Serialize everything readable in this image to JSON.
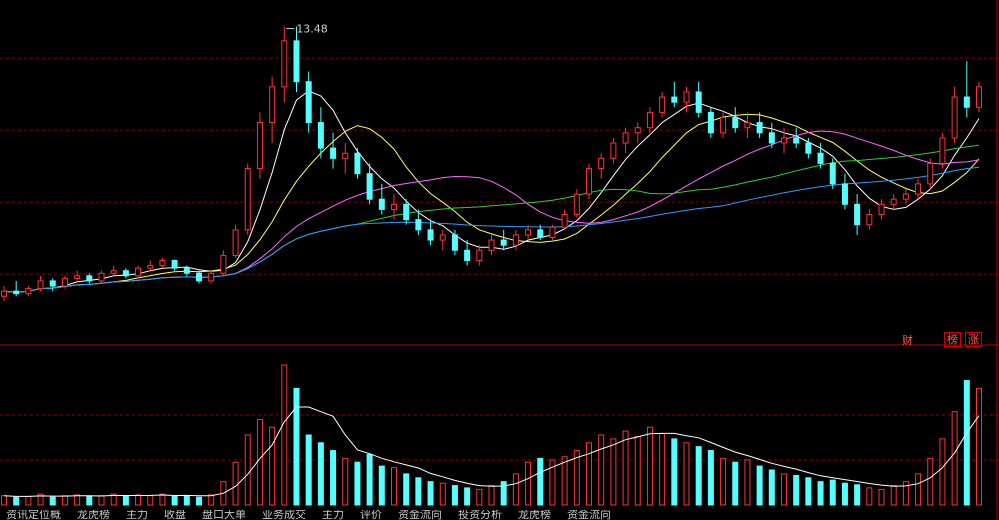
{
  "colors": {
    "background": "#000000",
    "up": "#ff3232",
    "down": "#54ffff",
    "grid": "#8b0000",
    "ma5": "#ffffff",
    "ma10": "#ffff66",
    "ma20": "#ff66ff",
    "ma30": "#33cc33",
    "ma60": "#3399ff"
  },
  "annotations": {
    "high_price": "13.48",
    "tag_cai": "财",
    "tag_bang": "榜",
    "tag_zhang": "涨"
  },
  "tabs": [
    "资讯定位概",
    "龙虎榜",
    "主力",
    "收盘",
    "盘口大单",
    "业务成交",
    "主力",
    "评价",
    "资金流向",
    "投资分析",
    "龙虎榜",
    "资金流向"
  ],
  "chart_data": [
    {
      "type": "candlestick",
      "title": "",
      "ylim": [
        7.5,
        14.0
      ],
      "grid": true,
      "series_note": "daily candles with moving averages",
      "bars": [
        [
          8.2,
          8.4,
          8.1,
          8.3
        ],
        [
          8.3,
          8.5,
          8.2,
          8.25
        ],
        [
          8.25,
          8.4,
          8.2,
          8.35
        ],
        [
          8.35,
          8.6,
          8.3,
          8.5
        ],
        [
          8.5,
          8.55,
          8.3,
          8.4
        ],
        [
          8.4,
          8.6,
          8.35,
          8.55
        ],
        [
          8.55,
          8.7,
          8.5,
          8.6
        ],
        [
          8.6,
          8.65,
          8.45,
          8.5
        ],
        [
          8.5,
          8.7,
          8.45,
          8.65
        ],
        [
          8.65,
          8.8,
          8.6,
          8.7
        ],
        [
          8.7,
          8.75,
          8.55,
          8.6
        ],
        [
          8.6,
          8.8,
          8.55,
          8.75
        ],
        [
          8.75,
          8.9,
          8.7,
          8.8
        ],
        [
          8.8,
          8.95,
          8.75,
          8.9
        ],
        [
          8.9,
          8.92,
          8.7,
          8.75
        ],
        [
          8.75,
          8.8,
          8.6,
          8.65
        ],
        [
          8.65,
          8.7,
          8.45,
          8.5
        ],
        [
          8.5,
          8.7,
          8.45,
          8.65
        ],
        [
          8.65,
          9.1,
          8.6,
          9.0
        ],
        [
          9.0,
          9.6,
          8.95,
          9.5
        ],
        [
          9.5,
          10.8,
          9.4,
          10.7
        ],
        [
          10.7,
          11.8,
          10.5,
          11.6
        ],
        [
          11.6,
          12.5,
          11.2,
          12.3
        ],
        [
          12.3,
          13.48,
          12.0,
          13.2
        ],
        [
          13.2,
          13.48,
          12.2,
          12.4
        ],
        [
          12.4,
          12.6,
          11.4,
          11.6
        ],
        [
          11.6,
          11.9,
          10.9,
          11.1
        ],
        [
          11.1,
          11.4,
          10.7,
          10.9
        ],
        [
          10.9,
          11.2,
          10.6,
          11.0
        ],
        [
          11.0,
          11.1,
          10.5,
          10.6
        ],
        [
          10.6,
          10.8,
          10.0,
          10.1
        ],
        [
          10.1,
          10.4,
          9.8,
          9.9
        ],
        [
          9.9,
          10.2,
          9.7,
          10.0
        ],
        [
          10.0,
          10.1,
          9.6,
          9.7
        ],
        [
          9.7,
          9.9,
          9.4,
          9.5
        ],
        [
          9.5,
          9.7,
          9.2,
          9.3
        ],
        [
          9.3,
          9.5,
          9.1,
          9.4
        ],
        [
          9.4,
          9.5,
          9.0,
          9.1
        ],
        [
          9.1,
          9.3,
          8.8,
          8.9
        ],
        [
          8.9,
          9.2,
          8.8,
          9.1
        ],
        [
          9.1,
          9.4,
          9.0,
          9.3
        ],
        [
          9.3,
          9.5,
          9.1,
          9.2
        ],
        [
          9.2,
          9.5,
          9.1,
          9.4
        ],
        [
          9.4,
          9.6,
          9.3,
          9.5
        ],
        [
          9.5,
          9.6,
          9.3,
          9.35
        ],
        [
          9.35,
          9.6,
          9.3,
          9.55
        ],
        [
          9.55,
          9.9,
          9.5,
          9.8
        ],
        [
          9.8,
          10.3,
          9.75,
          10.2
        ],
        [
          10.2,
          10.8,
          10.1,
          10.7
        ],
        [
          10.7,
          11.0,
          10.5,
          10.9
        ],
        [
          10.9,
          11.3,
          10.8,
          11.2
        ],
        [
          11.2,
          11.5,
          11.0,
          11.4
        ],
        [
          11.4,
          11.6,
          11.2,
          11.5
        ],
        [
          11.5,
          11.9,
          11.4,
          11.8
        ],
        [
          11.8,
          12.2,
          11.7,
          12.1
        ],
        [
          12.1,
          12.4,
          11.9,
          12.0
        ],
        [
          12.0,
          12.3,
          11.8,
          12.2
        ],
        [
          12.2,
          12.4,
          11.7,
          11.8
        ],
        [
          11.8,
          11.9,
          11.3,
          11.4
        ],
        [
          11.4,
          11.8,
          11.3,
          11.7
        ],
        [
          11.7,
          11.9,
          11.4,
          11.5
        ],
        [
          11.5,
          11.8,
          11.3,
          11.6
        ],
        [
          11.6,
          11.8,
          11.3,
          11.4
        ],
        [
          11.4,
          11.6,
          11.1,
          11.2
        ],
        [
          11.2,
          11.5,
          11.0,
          11.3
        ],
        [
          11.3,
          11.5,
          11.1,
          11.2
        ],
        [
          11.2,
          11.3,
          10.9,
          11.0
        ],
        [
          11.0,
          11.2,
          10.7,
          10.8
        ],
        [
          10.8,
          10.9,
          10.3,
          10.4
        ],
        [
          10.4,
          10.6,
          9.9,
          10.0
        ],
        [
          10.0,
          10.2,
          9.4,
          9.6
        ],
        [
          9.6,
          9.9,
          9.5,
          9.8
        ],
        [
          9.8,
          10.1,
          9.7,
          10.0
        ],
        [
          10.0,
          10.2,
          9.9,
          10.1
        ],
        [
          10.1,
          10.3,
          10.0,
          10.2
        ],
        [
          10.2,
          10.5,
          10.1,
          10.4
        ],
        [
          10.4,
          10.9,
          10.3,
          10.8
        ],
        [
          10.8,
          11.4,
          10.7,
          11.3
        ],
        [
          11.3,
          12.3,
          11.2,
          12.1
        ],
        [
          12.1,
          12.8,
          11.7,
          11.9
        ],
        [
          11.9,
          12.4,
          11.8,
          12.3
        ]
      ]
    },
    {
      "type": "bar",
      "title": "",
      "series_note": "volume",
      "values": [
        12,
        10,
        11,
        14,
        10,
        12,
        13,
        11,
        12,
        14,
        11,
        13,
        12,
        14,
        11,
        12,
        10,
        13,
        30,
        55,
        90,
        110,
        100,
        180,
        150,
        90,
        80,
        70,
        60,
        55,
        65,
        50,
        48,
        40,
        35,
        30,
        28,
        25,
        22,
        20,
        25,
        30,
        40,
        55,
        60,
        58,
        62,
        70,
        80,
        90,
        85,
        95,
        88,
        100,
        92,
        85,
        80,
        75,
        70,
        60,
        55,
        58,
        50,
        45,
        40,
        38,
        35,
        30,
        32,
        28,
        26,
        22,
        20,
        25,
        30,
        40,
        60,
        85,
        120,
        160,
        150
      ]
    }
  ]
}
